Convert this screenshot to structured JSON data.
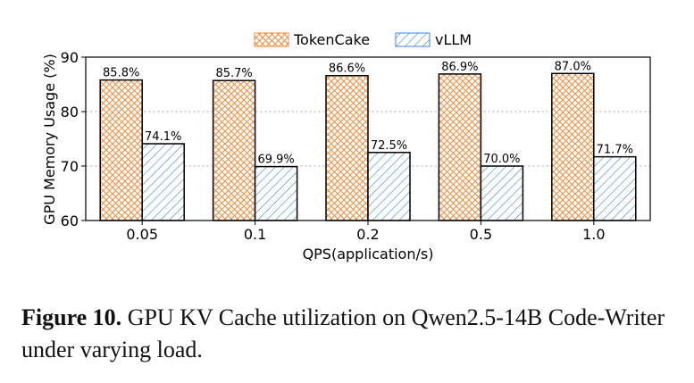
{
  "chart_data": {
    "type": "bar",
    "categories": [
      "0.05",
      "0.1",
      "0.2",
      "0.5",
      "1.0"
    ],
    "series": [
      {
        "name": "TokenCake",
        "values": [
          85.8,
          85.7,
          86.6,
          86.9,
          87.0
        ],
        "labels": [
          "85.8%",
          "85.7%",
          "86.6%",
          "86.9%",
          "87.0%"
        ],
        "color": "#f08c3c",
        "pattern": "crosshatch"
      },
      {
        "name": "vLLM",
        "values": [
          74.1,
          69.9,
          72.5,
          70.0,
          71.7
        ],
        "labels": [
          "74.1%",
          "69.9%",
          "72.5%",
          "70.0%",
          "71.7%"
        ],
        "color": "#3a86c8",
        "pattern": "diagonal"
      }
    ],
    "xlabel": "QPS(application/s)",
    "ylabel": "GPU Memory Usage (%)",
    "ylim": [
      60,
      90
    ],
    "yticks": [
      "60",
      "70",
      "80",
      "90"
    ],
    "grid": true,
    "legend_position": "top-center"
  },
  "caption": {
    "label": "Figure 10.",
    "text": " GPU KV Cache utilization on Qwen2.5-14B Code-Writer under varying load."
  }
}
